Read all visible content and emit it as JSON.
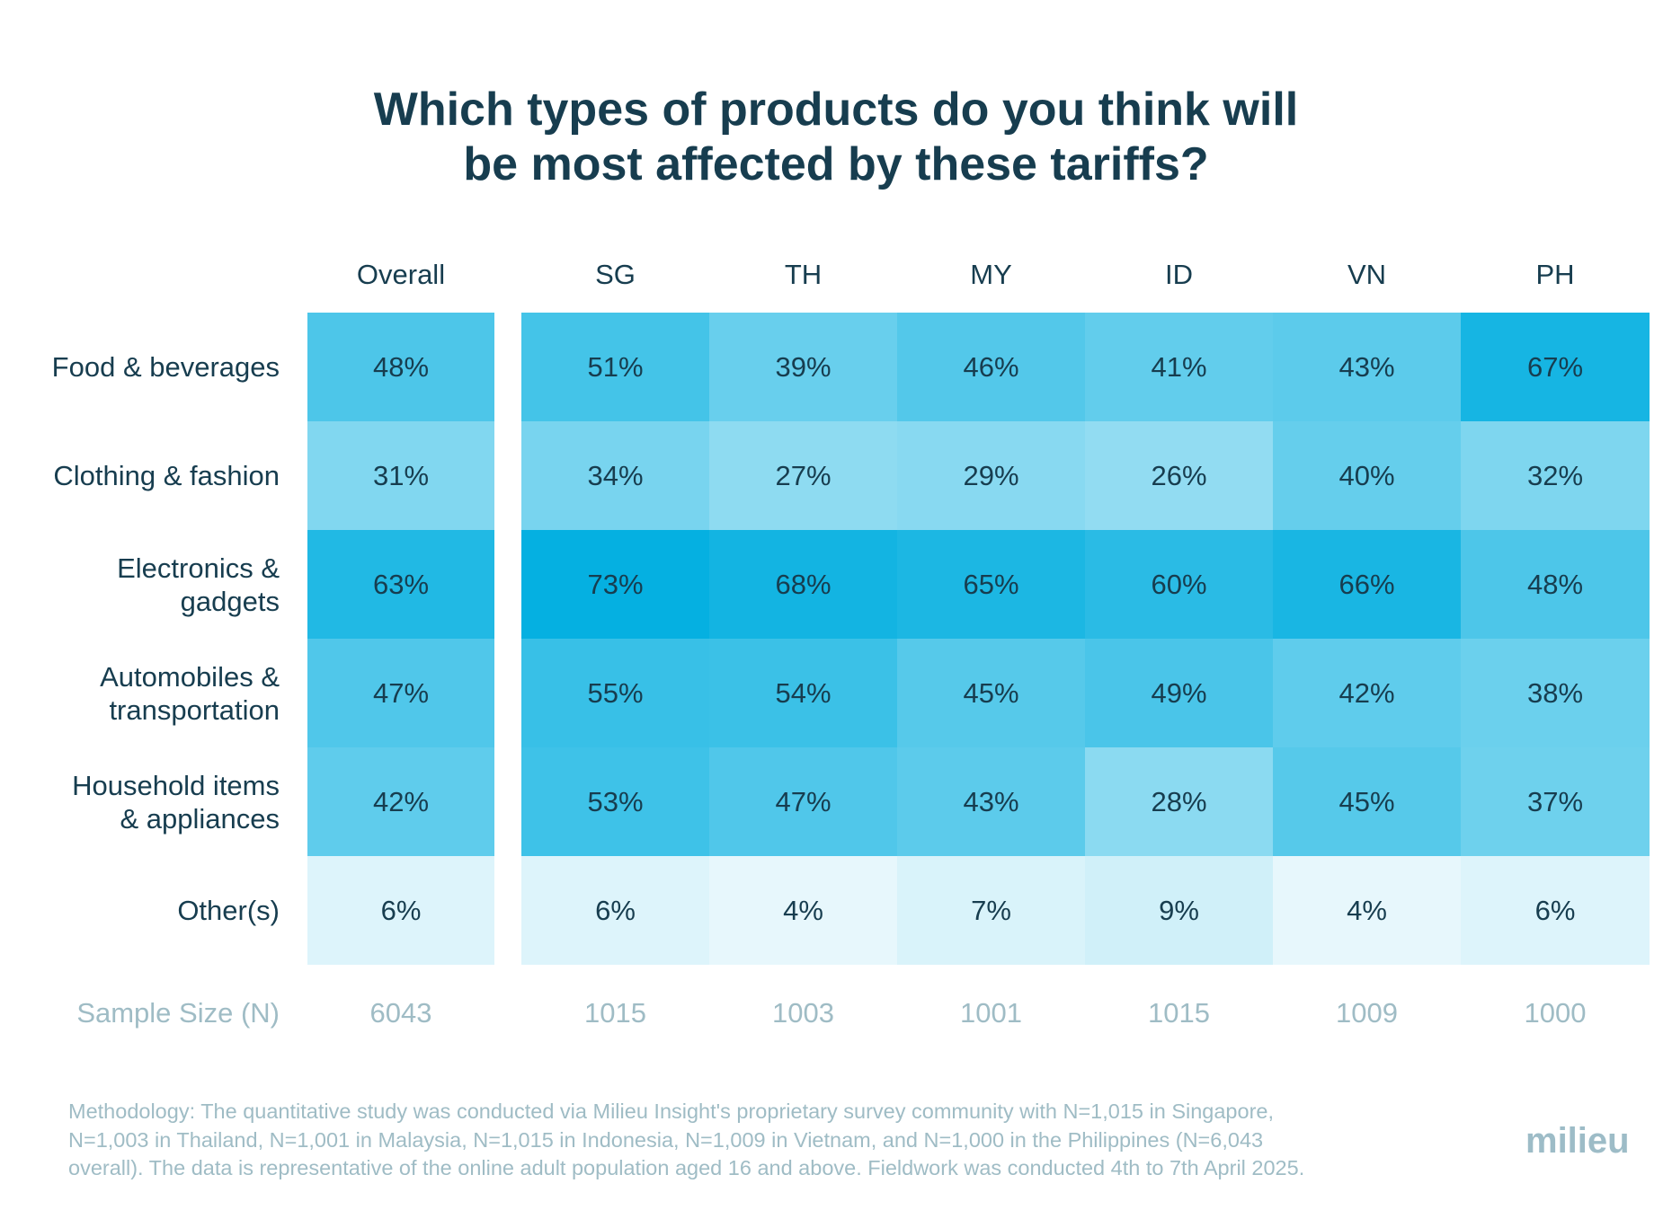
{
  "title": {
    "line1": "Which types of products do you think will",
    "line2": "be most affected by these tariffs?"
  },
  "chart_data": {
    "type": "heatmap",
    "title": "Which types of products do you think will be most affected by these tariffs?",
    "columns": [
      "Overall",
      "SG",
      "TH",
      "MY",
      "ID",
      "VN",
      "PH"
    ],
    "rows": [
      {
        "label_lines": [
          "Food & beverages"
        ],
        "label": "Food & beverages",
        "values": [
          48,
          51,
          39,
          46,
          41,
          43,
          67
        ]
      },
      {
        "label_lines": [
          "Clothing & fashion"
        ],
        "label": "Clothing & fashion",
        "values": [
          31,
          34,
          27,
          29,
          26,
          40,
          32
        ]
      },
      {
        "label_lines": [
          "Electronics &",
          "gadgets"
        ],
        "label": "Electronics & gadgets",
        "values": [
          63,
          73,
          68,
          65,
          60,
          66,
          48
        ]
      },
      {
        "label_lines": [
          "Automobiles &",
          "transportation"
        ],
        "label": "Automobiles & transportation",
        "values": [
          47,
          55,
          54,
          45,
          49,
          42,
          38
        ]
      },
      {
        "label_lines": [
          "Household items",
          "& appliances"
        ],
        "label": "Household items & appliances",
        "values": [
          42,
          53,
          47,
          43,
          28,
          45,
          37
        ]
      },
      {
        "label_lines": [
          "Other(s)"
        ],
        "label": "Other(s)",
        "values": [
          6,
          6,
          4,
          7,
          9,
          4,
          6
        ]
      }
    ],
    "value_suffix": "%",
    "sample_size": {
      "label": "Sample Size (N)",
      "values": [
        "6043",
        "1015",
        "1003",
        "1001",
        "1015",
        "1009",
        "1000"
      ]
    },
    "color_scale": {
      "low": "#ffffff",
      "high": "#00aee0"
    },
    "value_range": [
      0,
      75
    ]
  },
  "footer": {
    "methodology_lines": [
      "Methodology: The quantitative study was conducted via Milieu Insight's proprietary survey community with N=1,015 in Singapore,",
      "N=1,003 in Thailand, N=1,001  in Malaysia, N=1,015 in Indonesia, N=1,009 in Vietnam, and N=1,000 in the Philippines (N=6,043",
      "overall). The data is representative of the online adult population aged 16 and above. Fieldwork was conducted 4th to 7th April 2025."
    ],
    "logo": "milieu"
  }
}
